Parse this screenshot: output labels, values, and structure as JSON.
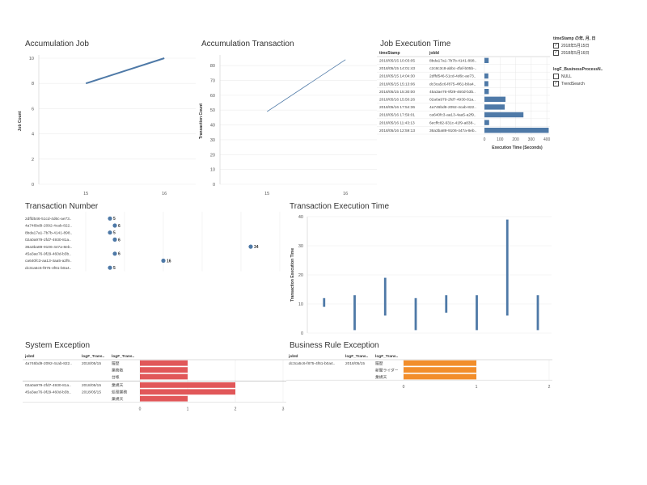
{
  "accumulation_job": {
    "title": "Accumulation Job",
    "ylabel": "Job Count",
    "yticks": [
      "0",
      "2",
      "4",
      "6",
      "8",
      "10"
    ],
    "xticks": [
      "15",
      "16"
    ],
    "color": "#4e79a7"
  },
  "accumulation_transaction": {
    "title": "Accumulation Transaction",
    "ylabel": "Transaction Count",
    "yticks": [
      "0",
      "10",
      "20",
      "30",
      "40",
      "50",
      "60",
      "70",
      "80"
    ],
    "xticks": [
      "15",
      "16"
    ],
    "color": "#4e79a7"
  },
  "job_execution_time": {
    "title": "Job Execution Time",
    "col_timestamp": "timeStamp",
    "col_jobid": "jobId",
    "xlabel": "Execution Time (Seconds)",
    "xticks": [
      "0",
      "100",
      "200",
      "300",
      "400"
    ],
    "rows": [
      {
        "ts": "2018/05/15 10:03:05",
        "id": "8bda17a1-7b7b-4141-898.."
      },
      {
        "ts": "2018/05/15 14:01:43",
        "id": "c2c8c3c8-abbc-4faf-b05b-.."
      },
      {
        "ts": "2018/05/15 14:04:30",
        "id": "2dffd546-51cd-4d6c-ae73.."
      },
      {
        "ts": "2018/05/15 15:13:06",
        "id": "dc3ca5c6-f875-4f61-b0a4.."
      },
      {
        "ts": "2018/05/15 15:30:00",
        "id": "45a3ae76-9f29-460d-b3b.."
      },
      {
        "ts": "2018/05/16 15:50:26",
        "id": "02a0a979-2fd7-4930-81a.."
      },
      {
        "ts": "2018/05/16 17:54:36",
        "id": "4a746bd9-2092-4cab-822.."
      },
      {
        "ts": "2018/05/16 17:59:01",
        "id": "ca640fc3-aa13-4aa5-a2f9.."
      },
      {
        "ts": "2018/05/16 11:43:13",
        "id": "6ecffc82-631c-41f9-a838-.."
      },
      {
        "ts": "2018/05/16 12:59:13",
        "id": "36a3ba89-9106-447a-8eb.."
      }
    ]
  },
  "legend": {
    "timestamp_head": "timeStamp の年, 月, 日",
    "timestamp_items": [
      "2018年5月15日",
      "2018年5月16日"
    ],
    "process_head": "logF_BusinessProcessN..",
    "process_items": [
      "NULL",
      "TrendSearch"
    ]
  },
  "transaction_number": {
    "title": "Transaction Number",
    "rows": [
      {
        "id": "2dffd546-51cd-4d6c-ae73.."
      },
      {
        "id": "4a746bd9-2092-4cab-822.."
      },
      {
        "id": "8bda17a1-7b7b-4141-898.."
      },
      {
        "id": "02a0a979-2fd7-4930-81a.."
      },
      {
        "id": "36a3ba89-9106-447a-8eb.."
      },
      {
        "id": "45a3ae76-9f29-460d-b3b.."
      },
      {
        "id": "ca640fc3-aa13-4aa5-a2f9.."
      },
      {
        "id": "dc3ca5c6-f875-4f61-b0a4.."
      }
    ]
  },
  "transaction_execution_time": {
    "title": "Transaction Execution Time",
    "ylabel": "Transaction Execution Time",
    "yticks": [
      "0",
      "10",
      "20",
      "30",
      "40"
    ]
  },
  "system_exception": {
    "title": "System Exception",
    "col_jobid": "jobId",
    "col_trans1": "logF_Trans..",
    "col_trans2": "logF_Trans..",
    "xticks": [
      "0",
      "1",
      "2",
      "3"
    ],
    "color": "#e15759",
    "rows": [
      {
        "jobid": "4a746bd9-2092-4cab-822..",
        "date": "2018/05/15",
        "label": "履歴"
      },
      {
        "jobid": "",
        "date": "",
        "label": "業務数"
      },
      {
        "jobid": "",
        "date": "",
        "label": "台帳"
      },
      {
        "jobid": "02a0a979-2fd7-4930-81a..",
        "date": "2018/05/15",
        "label": "業規天"
      },
      {
        "jobid": "45a3ae76-9f29-460d-b3b..",
        "date": "2018/05/15",
        "label": "処理業務"
      },
      {
        "jobid": "",
        "date": "",
        "label": "業規天"
      }
    ]
  },
  "business_rule_exception": {
    "title": "Business Rule Exception",
    "col_jobid": "jobId",
    "col_trans1": "logF_Trans..",
    "col_trans2": "logF_Trans..",
    "xticks": [
      "0",
      "1",
      "2"
    ],
    "color": "#f28e2b",
    "rows": [
      {
        "jobid": "dc3ca5c6-f875-4f61-b0a4..",
        "date": "2018/05/15",
        "label": "履歴"
      },
      {
        "jobid": "",
        "date": "",
        "label": "新聞ライダー"
      },
      {
        "jobid": "",
        "date": "",
        "label": "業規天"
      }
    ]
  },
  "chart_data": [
    {
      "type": "line",
      "title": "Accumulation Job",
      "ylabel": "Job Count",
      "x": [
        15,
        16
      ],
      "y": [
        8,
        10
      ],
      "ylim": [
        0,
        10
      ]
    },
    {
      "type": "line",
      "title": "Accumulation Transaction",
      "ylabel": "Transaction Count",
      "x": [
        15,
        16
      ],
      "y": [
        49,
        84
      ],
      "ylim": [
        0,
        85
      ]
    },
    {
      "type": "bar",
      "title": "Job Execution Time",
      "xlabel": "Execution Time (Seconds)",
      "values": [
        27,
        0,
        25,
        25,
        28,
        135,
        130,
        250,
        30,
        412
      ],
      "xlim": [
        0,
        420
      ]
    },
    {
      "type": "scatter",
      "title": "Transaction Number",
      "values": [
        5,
        6,
        5,
        6,
        34,
        6,
        16,
        5
      ],
      "xlim": [
        0,
        40
      ]
    },
    {
      "type": "bar",
      "title": "Transaction Execution Time",
      "ylabel": "Transaction Execution Time",
      "ranges": [
        [
          9,
          12
        ],
        [
          1,
          13
        ],
        [
          6,
          19
        ],
        [
          1,
          12
        ],
        [
          7,
          13
        ],
        [
          1,
          13
        ],
        [
          6,
          39
        ],
        [
          1,
          13
        ]
      ],
      "ylim": [
        0,
        40
      ]
    },
    {
      "type": "bar",
      "title": "System Exception",
      "values": [
        1,
        1,
        1,
        2,
        2,
        1
      ],
      "xlim": [
        0,
        3
      ]
    },
    {
      "type": "bar",
      "title": "Business Rule Exception",
      "values": [
        1,
        1,
        1
      ],
      "xlim": [
        0,
        2
      ]
    }
  ]
}
